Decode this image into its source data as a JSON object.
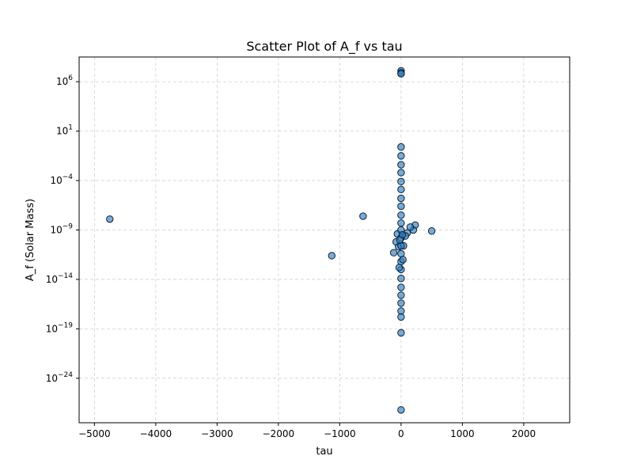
{
  "chart_data": {
    "type": "scatter",
    "title": "Scatter Plot of A_f vs tau",
    "xlabel": "tau",
    "ylabel": "A_f (Solar Mass)",
    "xlim": [
      -5250,
      2750
    ],
    "ylim_log10": [
      -28.5,
      8.5
    ],
    "y_scale": "log",
    "grid": true,
    "x_ticks": [
      {
        "value": -5000,
        "label": "−5000"
      },
      {
        "value": -4000,
        "label": "−4000"
      },
      {
        "value": -3000,
        "label": "−3000"
      },
      {
        "value": -2000,
        "label": "−2000"
      },
      {
        "value": -1000,
        "label": "−1000"
      },
      {
        "value": 0,
        "label": "0"
      },
      {
        "value": 1000,
        "label": "1000"
      },
      {
        "value": 2000,
        "label": "2000"
      }
    ],
    "y_ticks": [
      {
        "exp": 6,
        "base": "10",
        "sup": "6"
      },
      {
        "exp": 1,
        "base": "10",
        "sup": "1"
      },
      {
        "exp": -4,
        "base": "10",
        "sup": "−4"
      },
      {
        "exp": -9,
        "base": "10",
        "sup": "−9"
      },
      {
        "exp": -14,
        "base": "10",
        "sup": "−14"
      },
      {
        "exp": -19,
        "base": "10",
        "sup": "−19"
      },
      {
        "exp": -24,
        "base": "10",
        "sup": "−24"
      }
    ],
    "points": [
      {
        "x": -4750,
        "log10y": -7.9
      },
      {
        "x": -1130,
        "log10y": -11.6
      },
      {
        "x": -620,
        "log10y": -7.6
      },
      {
        "x": 500,
        "log10y": -9.1
      },
      {
        "x": 230,
        "log10y": -8.5
      },
      {
        "x": 200,
        "log10y": -9.0
      },
      {
        "x": 150,
        "log10y": -8.7
      },
      {
        "x": 100,
        "log10y": -9.3
      },
      {
        "x": 70,
        "log10y": -9.6
      },
      {
        "x": -120,
        "log10y": -11.3
      },
      {
        "x": -80,
        "log10y": -10.2
      },
      {
        "x": -60,
        "log10y": -9.4
      },
      {
        "x": -40,
        "log10y": -10.7
      },
      {
        "x": 40,
        "log10y": -10.6
      },
      {
        "x": 0,
        "log10y": 7.1
      },
      {
        "x": 0,
        "log10y": 6.9
      },
      {
        "x": 0,
        "log10y": 6.8
      },
      {
        "x": 0,
        "log10y": -0.6
      },
      {
        "x": 0,
        "log10y": -1.5
      },
      {
        "x": 0,
        "log10y": -2.4
      },
      {
        "x": 0,
        "log10y": -3.2
      },
      {
        "x": 0,
        "log10y": -4.1
      },
      {
        "x": 0,
        "log10y": -4.9
      },
      {
        "x": 0,
        "log10y": -5.8
      },
      {
        "x": 0,
        "log10y": -6.6
      },
      {
        "x": 0,
        "log10y": -7.5
      },
      {
        "x": 0,
        "log10y": -8.3
      },
      {
        "x": 0,
        "log10y": -9.0
      },
      {
        "x": 0,
        "log10y": -9.8
      },
      {
        "x": 0,
        "log10y": -10.6
      },
      {
        "x": 0,
        "log10y": -11.4
      },
      {
        "x": 0,
        "log10y": -12.2
      },
      {
        "x": 0,
        "log10y": -13.0
      },
      {
        "x": 0,
        "log10y": -13.9
      },
      {
        "x": 0,
        "log10y": -14.8
      },
      {
        "x": 0,
        "log10y": -15.6
      },
      {
        "x": 0,
        "log10y": -16.4
      },
      {
        "x": 0,
        "log10y": -17.2
      },
      {
        "x": 0,
        "log10y": -17.8
      },
      {
        "x": 0,
        "log10y": -19.4
      },
      {
        "x": 0,
        "log10y": -27.2
      },
      {
        "x": 20,
        "log10y": -9.5
      },
      {
        "x": -20,
        "log10y": -10.0
      },
      {
        "x": 30,
        "log10y": -12.0
      },
      {
        "x": -30,
        "log10y": -12.8
      }
    ]
  }
}
